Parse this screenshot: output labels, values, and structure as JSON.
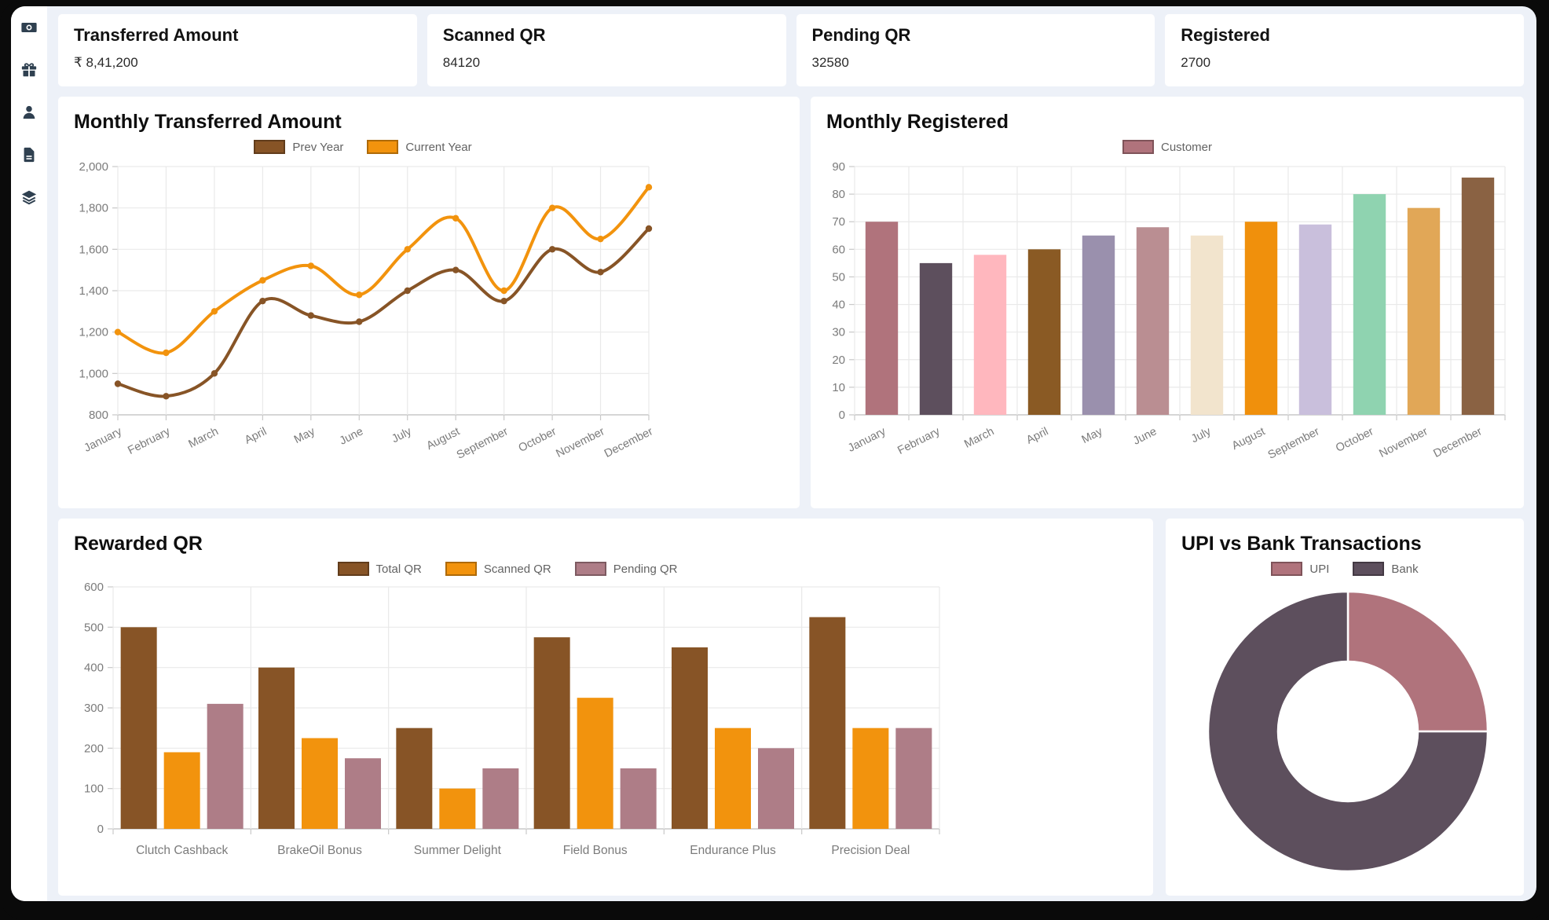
{
  "colors": {
    "page_background": "#edf1f8",
    "card_background": "#ffffff",
    "sidebar_icon": "#2f4050",
    "grid_line": "#e9e9e9",
    "axis_line": "#c9c9c9",
    "tick_text": "#7b7b7b",
    "brown": "#875426",
    "orange": "#f2930d",
    "rose": "#b0737c",
    "dark_plum": "#5d4f5d"
  },
  "sidebar": {
    "items": [
      {
        "icon": "banknote-icon",
        "name": "payments"
      },
      {
        "icon": "gift-icon",
        "name": "rewards"
      },
      {
        "icon": "user-icon",
        "name": "customers"
      },
      {
        "icon": "document-icon",
        "name": "reports"
      },
      {
        "icon": "layers-icon",
        "name": "categories"
      }
    ]
  },
  "stats": [
    {
      "label": "Transferred Amount",
      "value": "₹ 8,41,200"
    },
    {
      "label": "Scanned QR",
      "value": "84120"
    },
    {
      "label": "Pending QR",
      "value": "32580"
    },
    {
      "label": "Registered",
      "value": "2700"
    }
  ],
  "chart_data": [
    {
      "id": "monthly_transferred",
      "type": "line",
      "title": "Monthly Transferred Amount",
      "categories": [
        "January",
        "February",
        "March",
        "April",
        "May",
        "June",
        "July",
        "August",
        "September",
        "October",
        "November",
        "December"
      ],
      "series": [
        {
          "name": "Prev Year",
          "color": "#875426",
          "values": [
            950,
            890,
            1000,
            1350,
            1280,
            1250,
            1400,
            1500,
            1350,
            1600,
            1490,
            1700
          ]
        },
        {
          "name": "Current Year",
          "color": "#f2930d",
          "values": [
            1200,
            1100,
            1300,
            1450,
            1520,
            1380,
            1600,
            1750,
            1400,
            1800,
            1650,
            1900
          ]
        }
      ],
      "ylim": [
        800,
        2000
      ],
      "ytick_step": 200,
      "grid": true,
      "legend_position": "top"
    },
    {
      "id": "monthly_registered",
      "type": "bar",
      "title": "Monthly Registered",
      "legend": [
        {
          "name": "Customer",
          "color": "#b0737c"
        }
      ],
      "categories": [
        "January",
        "February",
        "March",
        "April",
        "May",
        "June",
        "July",
        "August",
        "September",
        "October",
        "November",
        "December"
      ],
      "values": [
        70,
        55,
        58,
        60,
        65,
        68,
        65,
        70,
        69,
        80,
        75,
        86
      ],
      "bar_colors": [
        "#b0737c",
        "#5d4f5d",
        "#ffb7be",
        "#8a5a24",
        "#9a90ad",
        "#ba8e92",
        "#f2e4cd",
        "#f0900c",
        "#c9bfdc",
        "#8fd3b0",
        "#e1a757",
        "#8a6243"
      ],
      "ylim": [
        0,
        90
      ],
      "ytick_step": 10,
      "grid": true,
      "legend_position": "top"
    },
    {
      "id": "rewarded_qr",
      "type": "grouped_bar",
      "title": "Rewarded QR",
      "categories": [
        "Clutch Cashback",
        "BrakeOil Bonus",
        "Summer Delight",
        "Field Bonus",
        "Endurance Plus",
        "Precision Deal"
      ],
      "series": [
        {
          "name": "Total QR",
          "color": "#875426",
          "values": [
            500,
            400,
            250,
            475,
            450,
            525
          ]
        },
        {
          "name": "Scanned QR",
          "color": "#f2930d",
          "values": [
            190,
            225,
            100,
            325,
            250,
            250
          ]
        },
        {
          "name": "Pending QR",
          "color": "#ae7d87",
          "values": [
            310,
            175,
            150,
            150,
            200,
            250
          ]
        }
      ],
      "ylim": [
        0,
        600
      ],
      "ytick_step": 100,
      "grid": true,
      "legend_position": "top"
    },
    {
      "id": "upi_vs_bank",
      "type": "pie",
      "title": "UPI vs Bank Transactions",
      "donut": true,
      "cutout_ratio": 0.5,
      "unit": "percent_estimated",
      "segments": [
        {
          "name": "UPI",
          "color": "#b0737c",
          "value": 25
        },
        {
          "name": "Bank",
          "color": "#5d4f5d",
          "value": 75
        }
      ],
      "legend_position": "top"
    }
  ]
}
